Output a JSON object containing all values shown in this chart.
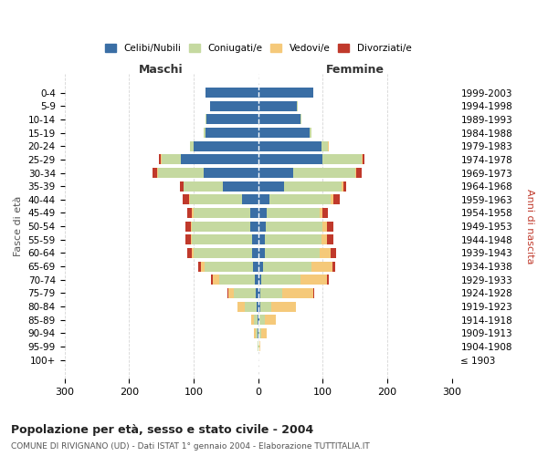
{
  "age_groups": [
    "100+",
    "95-99",
    "90-94",
    "85-89",
    "80-84",
    "75-79",
    "70-74",
    "65-69",
    "60-64",
    "55-59",
    "50-54",
    "45-49",
    "40-44",
    "35-39",
    "30-34",
    "25-29",
    "20-24",
    "15-19",
    "10-14",
    "5-9",
    "0-4"
  ],
  "birth_years": [
    "≤ 1903",
    "1904-1908",
    "1909-1913",
    "1914-1918",
    "1919-1923",
    "1924-1928",
    "1929-1933",
    "1934-1938",
    "1939-1943",
    "1944-1948",
    "1949-1953",
    "1954-1958",
    "1959-1963",
    "1964-1968",
    "1969-1973",
    "1974-1978",
    "1979-1983",
    "1984-1988",
    "1989-1993",
    "1994-1998",
    "1999-2003"
  ],
  "male_celibi": [
    0,
    0,
    1,
    1,
    2,
    3,
    5,
    8,
    10,
    10,
    12,
    12,
    25,
    55,
    85,
    120,
    100,
    82,
    80,
    75,
    82
  ],
  "male_coniugati": [
    0,
    1,
    3,
    5,
    18,
    35,
    55,
    75,
    90,
    92,
    90,
    88,
    80,
    60,
    70,
    30,
    5,
    2,
    1,
    0,
    0
  ],
  "male_vedovi": [
    0,
    0,
    2,
    5,
    12,
    8,
    10,
    5,
    3,
    2,
    2,
    2,
    2,
    1,
    1,
    1,
    0,
    0,
    0,
    0,
    0
  ],
  "male_divorziati": [
    0,
    0,
    0,
    0,
    0,
    2,
    3,
    5,
    7,
    8,
    8,
    8,
    10,
    5,
    8,
    2,
    1,
    0,
    0,
    0,
    0
  ],
  "female_celibi": [
    0,
    0,
    0,
    2,
    3,
    3,
    5,
    8,
    10,
    10,
    12,
    14,
    18,
    40,
    55,
    100,
    98,
    80,
    65,
    60,
    85
  ],
  "female_coniugati": [
    0,
    2,
    5,
    8,
    18,
    35,
    60,
    75,
    85,
    88,
    88,
    82,
    95,
    90,
    95,
    60,
    10,
    3,
    2,
    1,
    0
  ],
  "female_vedovi": [
    1,
    2,
    8,
    18,
    38,
    48,
    42,
    32,
    18,
    8,
    6,
    4,
    3,
    2,
    2,
    2,
    1,
    0,
    0,
    0,
    0
  ],
  "female_divorziati": [
    0,
    0,
    0,
    0,
    0,
    1,
    2,
    5,
    8,
    10,
    10,
    8,
    10,
    5,
    8,
    2,
    1,
    0,
    0,
    0,
    0
  ],
  "color_celibi": "#3a6ea5",
  "color_coniugati": "#c5d9a0",
  "color_vedovi": "#f5c97a",
  "color_divorziati": "#c0392b",
  "title": "Popolazione per età, sesso e stato civile - 2004",
  "subtitle": "COMUNE DI RIVIGNANO (UD) - Dati ISTAT 1° gennaio 2004 - Elaborazione TUTTITALIA.IT",
  "xlabel_left": "Maschi",
  "xlabel_right": "Femmine",
  "ylabel_left": "Fasce di età",
  "ylabel_right": "Anni di nascita",
  "xlim": 300,
  "background_color": "#ffffff",
  "grid_color": "#cccccc"
}
